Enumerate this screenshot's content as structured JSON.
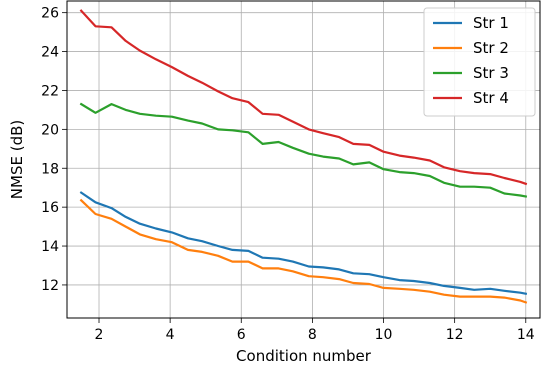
{
  "chart_data": {
    "type": "line",
    "title": "",
    "xlabel": "Condition number",
    "ylabel": "NMSE (dB)",
    "xlim": [
      1.1,
      14.4
    ],
    "ylim": [
      10.3,
      26.6
    ],
    "xticks": [
      2,
      4,
      6,
      8,
      10,
      12,
      14
    ],
    "yticks": [
      12,
      14,
      16,
      18,
      20,
      22,
      24,
      26
    ],
    "grid": true,
    "legend": "top-right",
    "x": [
      1.5,
      1.9,
      2.35,
      2.75,
      3.15,
      3.6,
      4.05,
      4.5,
      4.9,
      5.35,
      5.75,
      6.2,
      6.6,
      7.05,
      7.45,
      7.9,
      8.3,
      8.75,
      9.15,
      9.6,
      10.0,
      10.45,
      10.85,
      11.3,
      11.7,
      12.15,
      12.55,
      13.0,
      13.4,
      13.85,
      14.0
    ],
    "series": [
      {
        "name": "Str 1",
        "color": "#1f77b4",
        "values": [
          16.75,
          16.25,
          15.95,
          15.5,
          15.15,
          14.9,
          14.7,
          14.4,
          14.25,
          14.0,
          13.8,
          13.75,
          13.4,
          13.35,
          13.2,
          12.95,
          12.9,
          12.8,
          12.6,
          12.55,
          12.4,
          12.25,
          12.2,
          12.1,
          11.95,
          11.85,
          11.75,
          11.8,
          11.7,
          11.6,
          11.55
        ]
      },
      {
        "name": "Str 2",
        "color": "#ff7f0e",
        "values": [
          16.35,
          15.65,
          15.4,
          15.0,
          14.6,
          14.35,
          14.2,
          13.8,
          13.7,
          13.5,
          13.2,
          13.2,
          12.85,
          12.85,
          12.7,
          12.45,
          12.4,
          12.3,
          12.1,
          12.05,
          11.85,
          11.8,
          11.75,
          11.65,
          11.5,
          11.4,
          11.4,
          11.4,
          11.35,
          11.2,
          11.1
        ]
      },
      {
        "name": "Str 3",
        "color": "#2ca02c",
        "values": [
          21.3,
          20.85,
          21.3,
          21.0,
          20.8,
          20.7,
          20.65,
          20.45,
          20.3,
          20.0,
          19.95,
          19.85,
          19.25,
          19.35,
          19.05,
          18.75,
          18.6,
          18.5,
          18.2,
          18.3,
          17.95,
          17.8,
          17.75,
          17.6,
          17.25,
          17.05,
          17.05,
          17.0,
          16.7,
          16.6,
          16.55
        ]
      },
      {
        "name": "Str 4",
        "color": "#d62728",
        "values": [
          26.1,
          25.3,
          25.25,
          24.55,
          24.05,
          23.6,
          23.2,
          22.75,
          22.4,
          21.95,
          21.6,
          21.4,
          20.8,
          20.75,
          20.4,
          20.0,
          19.8,
          19.6,
          19.25,
          19.2,
          18.85,
          18.65,
          18.55,
          18.4,
          18.05,
          17.85,
          17.75,
          17.7,
          17.5,
          17.3,
          17.2
        ]
      }
    ]
  }
}
